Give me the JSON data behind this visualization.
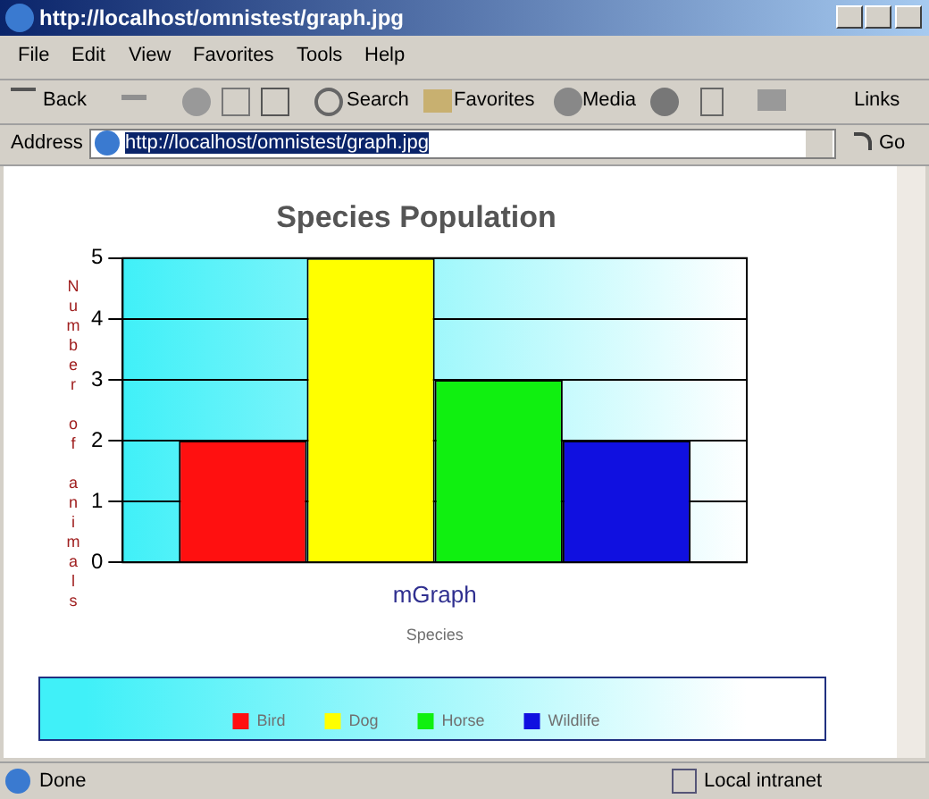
{
  "chart_data": {
    "type": "bar",
    "title": "Species Population",
    "xlabel": "Species",
    "ylabel": "Number of animals",
    "categories": [
      "mGraph"
    ],
    "series": [
      {
        "name": "Bird",
        "color": "#ff1010",
        "values": [
          2
        ]
      },
      {
        "name": "Dog",
        "color": "#ffff00",
        "values": [
          5
        ]
      },
      {
        "name": "Horse",
        "color": "#10f010",
        "values": [
          3
        ]
      },
      {
        "name": "Wildlife",
        "color": "#1010e0",
        "values": [
          2
        ]
      }
    ],
    "ylim": [
      0,
      5
    ],
    "yticks": [
      0,
      1,
      2,
      3,
      4,
      5
    ],
    "grid": "y",
    "legend": "bottom",
    "annotations": [
      "http://localhost/omnistest/graph.jpg",
      "File",
      "Edit",
      "View",
      "Favorites",
      "Tools",
      "Help",
      "Back",
      "Search",
      "Favorites",
      "Media",
      "Links",
      "Address",
      "http://localhost/omnistest/graph.jpg",
      "Go",
      "Done",
      "Local intranet"
    ]
  }
}
